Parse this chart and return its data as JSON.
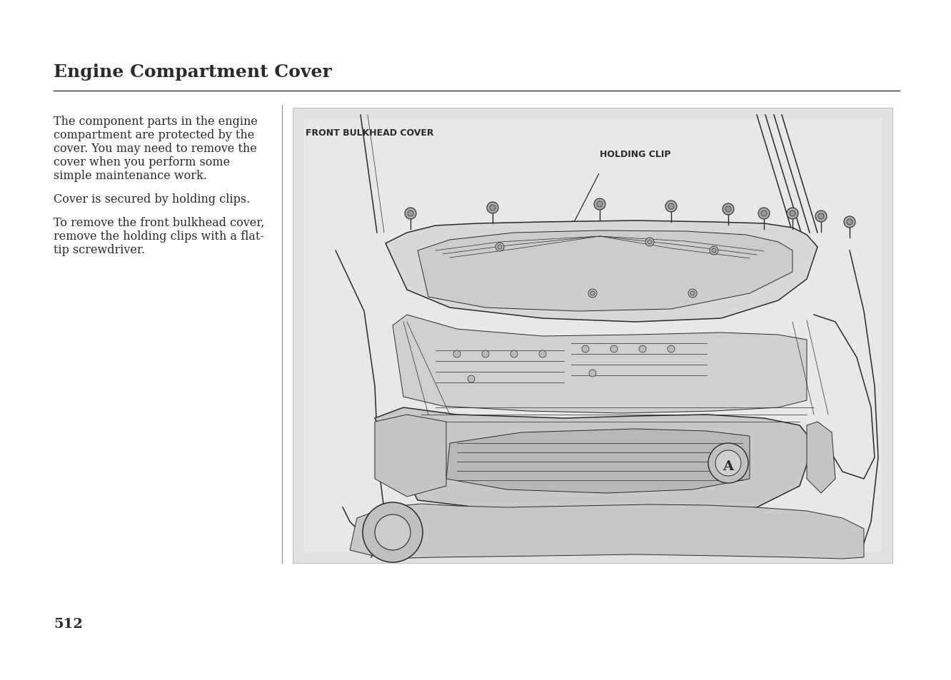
{
  "title": "Engine Compartment Cover",
  "page_number": "512",
  "bg": "#ffffff",
  "text_color": "#1a1a1a",
  "para1_lines": [
    "The component parts in the engine",
    "compartment are protected by the",
    "cover. You may need to remove the",
    "cover when you perform some",
    "simple maintenance work."
  ],
  "para2": "Cover is secured by holding clips.",
  "para3_lines": [
    "To remove the front bulkhead cover,",
    "remove the holding clips with a flat-",
    "tip screwdriver."
  ],
  "label1": "FRONT BULKHEAD COVER",
  "label2": "HOLDING CLIP",
  "diagram_bg": "#e0e0e0",
  "draw_color": "#2a2a2a",
  "title_fontsize": 18,
  "body_fontsize": 11.5,
  "label_fontsize": 9,
  "page_num_fontsize": 14
}
